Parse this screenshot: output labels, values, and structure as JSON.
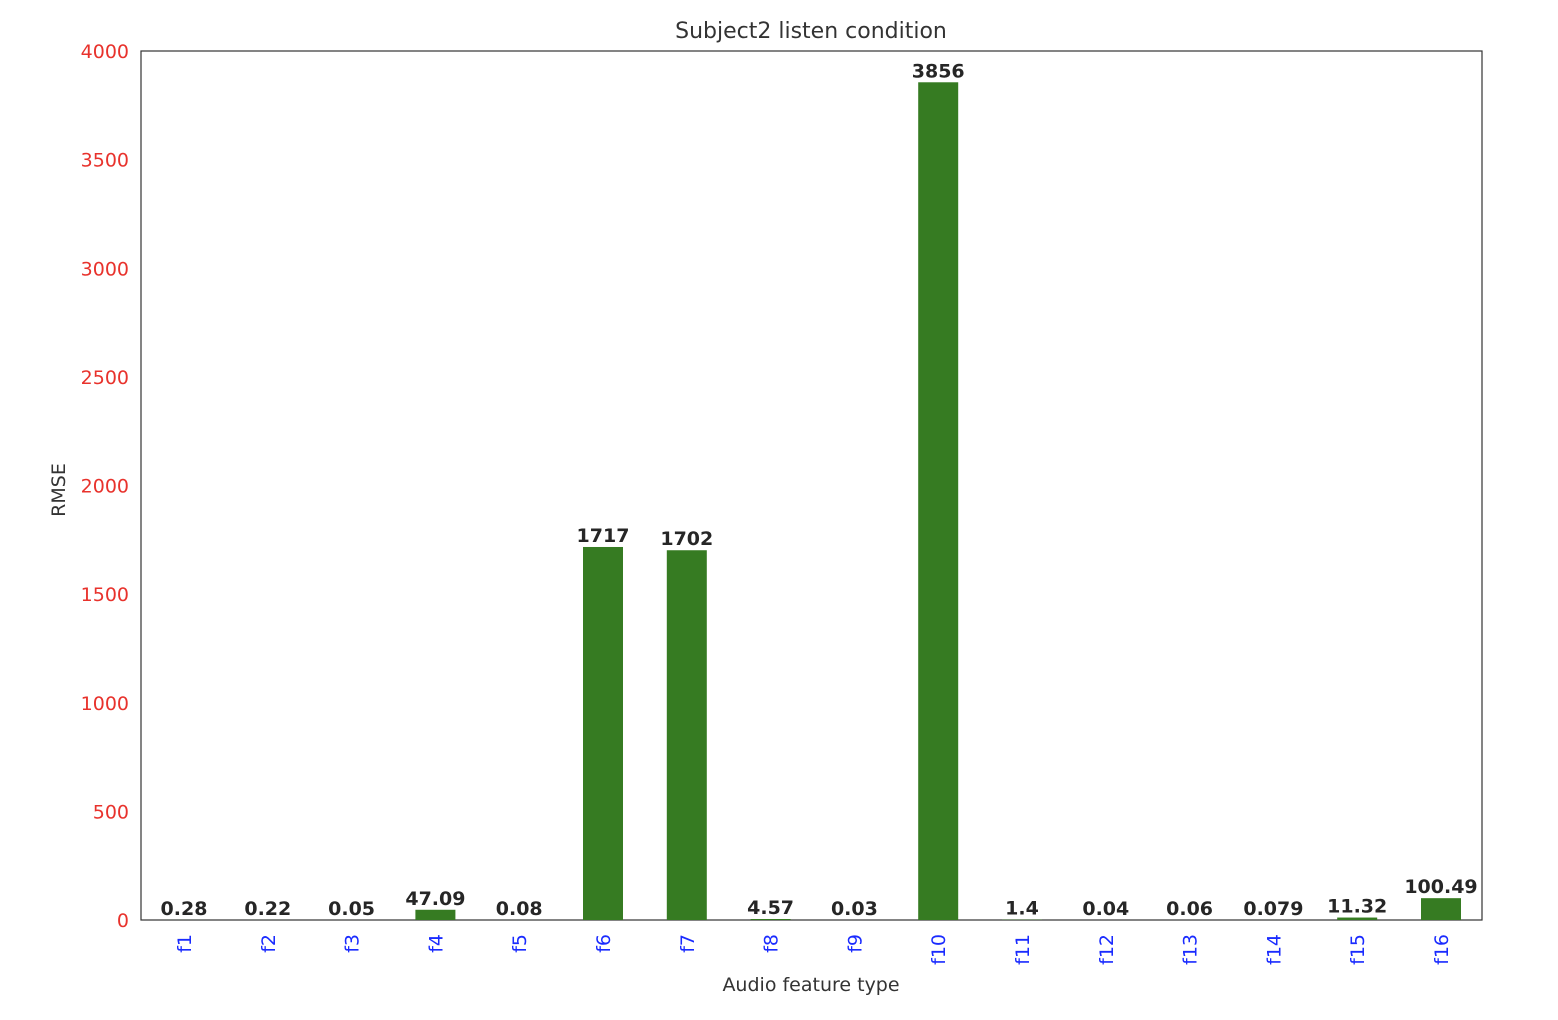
{
  "chart_data": {
    "type": "bar",
    "title": "Subject2 listen condition",
    "xlabel": "Audio feature type",
    "ylabel": "RMSE",
    "categories": [
      "f1",
      "f2",
      "f3",
      "f4",
      "f5",
      "f6",
      "f7",
      "f8",
      "f9",
      "f10",
      "f11",
      "f12",
      "f13",
      "f14",
      "f15",
      "f16"
    ],
    "values": [
      0.28,
      0.22,
      0.05,
      47.09,
      0.08,
      1717,
      1702,
      4.57,
      0.03,
      3856,
      1.4,
      0.04,
      0.06,
      0.079,
      11.32,
      100.49
    ],
    "value_labels": [
      "0.28",
      "0.22",
      "0.05",
      "47.09",
      "0.08",
      "1717",
      "1702",
      "4.57",
      "0.03",
      "3856",
      "1.4",
      "0.04",
      "0.06",
      "0.079",
      "11.32",
      "100.49"
    ],
    "ylim": [
      0,
      4000
    ],
    "yticks": [
      0,
      500,
      1000,
      1500,
      2000,
      2500,
      3000,
      3500,
      4000
    ],
    "grid": false,
    "bar_color": "#367b22",
    "ytick_color": "#e8322c",
    "xtick_color": "#1a2bff",
    "xtick_rotation": "vertical"
  }
}
